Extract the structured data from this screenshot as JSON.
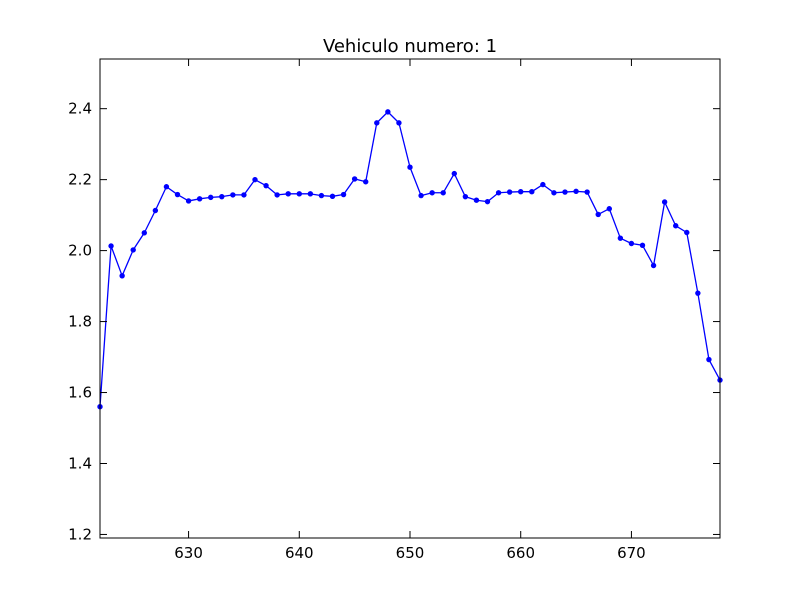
{
  "chart_data": {
    "type": "line",
    "title": "Vehiculo numero: 1",
    "xlabel": "",
    "ylabel": "",
    "xlim": [
      622,
      678
    ],
    "ylim": [
      1.19,
      2.54
    ],
    "x_ticks": [
      630,
      640,
      650,
      660,
      670
    ],
    "x_tick_labels": [
      "630",
      "640",
      "650",
      "660",
      "670"
    ],
    "y_ticks": [
      1.2,
      1.4,
      1.6,
      1.8,
      2.0,
      2.2,
      2.4
    ],
    "y_tick_labels": [
      "1.2",
      "1.4",
      "1.6",
      "1.8",
      "2.0",
      "2.2",
      "2.4"
    ],
    "grid": false,
    "legend": "none",
    "series": [
      {
        "color": "#0000ff",
        "marker": "dot",
        "x": [
          622,
          623,
          624,
          625,
          626,
          627,
          628,
          629,
          630,
          631,
          632,
          633,
          634,
          635,
          636,
          637,
          638,
          639,
          640,
          641,
          642,
          643,
          644,
          645,
          646,
          647,
          648,
          649,
          650,
          651,
          652,
          653,
          654,
          655,
          656,
          657,
          658,
          659,
          660,
          661,
          662,
          663,
          664,
          665,
          666,
          667,
          668,
          669,
          670,
          671,
          672,
          673,
          674,
          675,
          676,
          677,
          678
        ],
        "y": [
          1.56,
          2.013,
          1.929,
          2.002,
          2.05,
          2.113,
          2.18,
          2.158,
          2.14,
          2.146,
          2.15,
          2.152,
          2.157,
          2.157,
          2.2,
          2.183,
          2.157,
          2.16,
          2.16,
          2.16,
          2.155,
          2.153,
          2.158,
          2.202,
          2.194,
          2.36,
          2.391,
          2.36,
          2.235,
          2.155,
          2.163,
          2.163,
          2.217,
          2.152,
          2.142,
          2.138,
          2.163,
          2.165,
          2.166,
          2.166,
          2.186,
          2.163,
          2.165,
          2.167,
          2.165,
          2.102,
          2.118,
          2.035,
          2.02,
          2.015,
          1.958,
          2.137,
          2.07,
          2.051,
          1.88,
          1.693,
          1.635
        ]
      }
    ]
  }
}
